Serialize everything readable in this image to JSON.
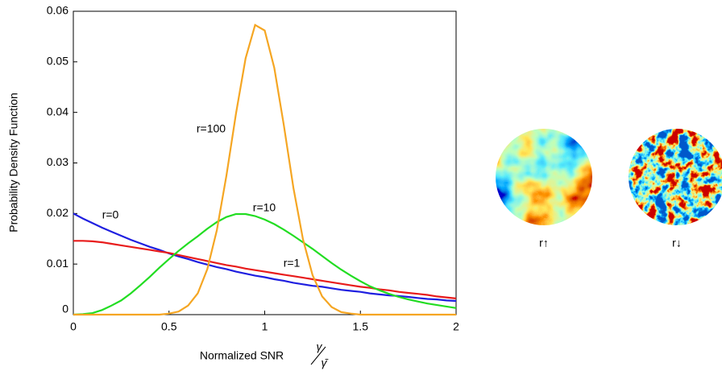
{
  "chart_data": {
    "type": "line",
    "y_label": "Probability Density Function",
    "x_label": "Normalized SNR",
    "x_label_fraction": {
      "numerator": "γ",
      "denominator": "γ̄"
    },
    "xlim": [
      0,
      2
    ],
    "xticks": [
      0,
      0.5,
      1,
      1.5,
      2
    ],
    "ylim": [
      0,
      0.06
    ],
    "yticks": [
      0,
      0.01,
      0.02,
      0.03,
      0.04,
      0.05,
      0.06
    ],
    "grid": false,
    "x": [
      0,
      0.05,
      0.1,
      0.15,
      0.2,
      0.25,
      0.3,
      0.35,
      0.4,
      0.45,
      0.5,
      0.55,
      0.6,
      0.65,
      0.7,
      0.75,
      0.8,
      0.85,
      0.9,
      0.95,
      1,
      1.05,
      1.1,
      1.15,
      1.2,
      1.25,
      1.3,
      1.35,
      1.4,
      1.45,
      1.5,
      1.55,
      1.6,
      1.65,
      1.7,
      1.75,
      1.8,
      1.85,
      1.9,
      1.95,
      2
    ],
    "series": [
      {
        "name": "r=0",
        "color": "#1f1fe0",
        "values": [
          0.02,
          0.019,
          0.0181,
          0.0172,
          0.0164,
          0.0156,
          0.0148,
          0.0141,
          0.0134,
          0.0128,
          0.0121,
          0.0115,
          0.011,
          0.0104,
          0.0099,
          0.0094,
          0.009,
          0.0085,
          0.0081,
          0.0077,
          0.0074,
          0.007,
          0.0067,
          0.0063,
          0.006,
          0.0057,
          0.0055,
          0.0052,
          0.0049,
          0.0047,
          0.0045,
          0.0042,
          0.004,
          0.0038,
          0.0037,
          0.0035,
          0.0033,
          0.0031,
          0.003,
          0.0028,
          0.0027
        ]
      },
      {
        "name": "r=1",
        "color": "#e81c1c",
        "values": [
          0.0146,
          0.0146,
          0.0145,
          0.0143,
          0.014,
          0.0137,
          0.0134,
          0.0131,
          0.0128,
          0.0125,
          0.0122,
          0.0118,
          0.0114,
          0.011,
          0.0106,
          0.0102,
          0.0098,
          0.0095,
          0.0091,
          0.0088,
          0.0085,
          0.0082,
          0.0079,
          0.0076,
          0.0073,
          0.007,
          0.0067,
          0.0064,
          0.0061,
          0.0058,
          0.0055,
          0.0053,
          0.005,
          0.0048,
          0.0045,
          0.0043,
          0.0041,
          0.0039,
          0.0036,
          0.0034,
          0.0032
        ]
      },
      {
        "name": "r=10",
        "color": "#22dd22",
        "values": [
          0,
          0.0001,
          0.0003,
          0.0009,
          0.0018,
          0.0028,
          0.0042,
          0.0058,
          0.0075,
          0.0093,
          0.011,
          0.0126,
          0.0141,
          0.0155,
          0.017,
          0.0183,
          0.0193,
          0.0199,
          0.0199,
          0.0195,
          0.0188,
          0.0179,
          0.0168,
          0.0156,
          0.0143,
          0.013,
          0.0116,
          0.0102,
          0.0089,
          0.0077,
          0.0066,
          0.0056,
          0.0048,
          0.0041,
          0.0035,
          0.003,
          0.0026,
          0.0022,
          0.0019,
          0.0016,
          0.0013
        ]
      },
      {
        "name": "r=100",
        "color": "#f5a623",
        "values": [
          0,
          0,
          0,
          0,
          0,
          0,
          0,
          0,
          0,
          0,
          0.0002,
          0.0006,
          0.0018,
          0.0042,
          0.009,
          0.0167,
          0.0275,
          0.0398,
          0.0507,
          0.0573,
          0.0562,
          0.0488,
          0.0374,
          0.0251,
          0.0149,
          0.0078,
          0.0036,
          0.0015,
          0.0005,
          0.0002,
          0,
          0,
          0,
          0,
          0,
          0,
          0,
          0,
          0,
          0,
          0
        ]
      }
    ],
    "images": [
      {
        "label": "r↑"
      },
      {
        "label": "r↓"
      }
    ]
  }
}
